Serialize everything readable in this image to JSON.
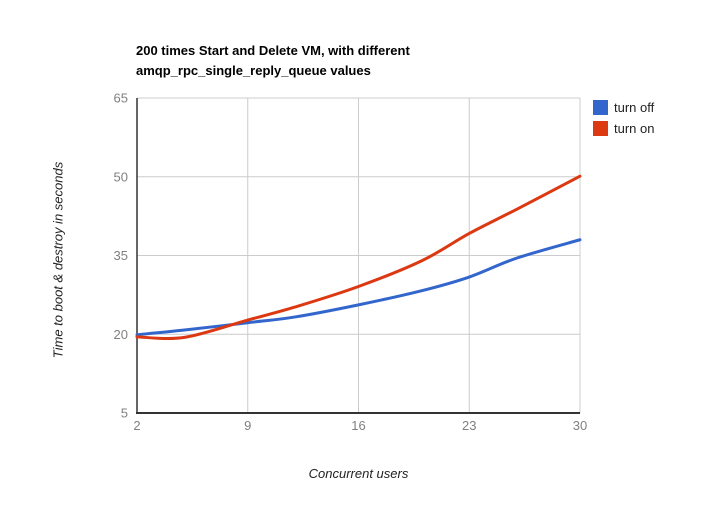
{
  "title": {
    "line1": "200 times Start and Delete VM, with different",
    "line2": "amqp_rpc_single_reply_queue values"
  },
  "axes": {
    "y_title": "Time to boot & destroy in seconds",
    "x_title": "Concurrent users"
  },
  "legend": {
    "position": "right",
    "items": [
      {
        "label": "turn off",
        "color": "#3366CC"
      },
      {
        "label": "turn on",
        "color": "#DC3912"
      }
    ]
  },
  "colors": {
    "grid": "#CCCCCC",
    "axis_line": "#333333",
    "tick_label": "#808080",
    "title_text": "#000000",
    "axis_title_text": "#222222",
    "series_blue": "#3366CC",
    "series_red": "#DC3912"
  },
  "chart_data": {
    "type": "line",
    "title": "200 times Start and Delete VM, with different amqp_rpc_single_reply_queue values",
    "xlabel": "Concurrent users",
    "ylabel": "Time to boot & destroy in seconds",
    "xlim": [
      2,
      30
    ],
    "ylim": [
      5,
      65
    ],
    "x_ticks": [
      2,
      9,
      16,
      23,
      30
    ],
    "y_ticks": [
      5,
      20,
      35,
      50,
      65
    ],
    "grid": true,
    "legend_position": "right",
    "x": [
      2,
      5,
      9,
      12,
      16,
      20,
      23,
      26,
      30
    ],
    "series": [
      {
        "name": "turn off",
        "color": "#3366CC",
        "values": [
          19.9,
          20.8,
          22.2,
          23.3,
          25.6,
          28.3,
          30.9,
          34.5,
          38.0
        ]
      },
      {
        "name": "turn on",
        "color": "#DC3912",
        "values": [
          19.5,
          19.4,
          22.7,
          25.2,
          29.1,
          34.0,
          39.2,
          43.8,
          50.1
        ]
      }
    ]
  }
}
